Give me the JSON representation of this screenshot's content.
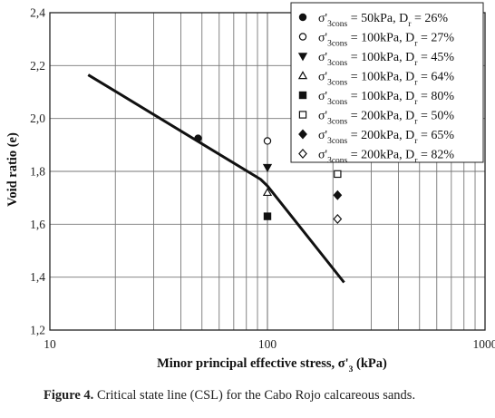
{
  "caption": {
    "label": "Figure 4.",
    "text": " Critical state line (CSL) for the Cabo Rojo calcareous sands."
  },
  "chart_data": {
    "type": "scatter",
    "title": "",
    "xlabel": "Minor principal effective stress, σ'3 (kPa)",
    "ylabel": "Void ratio (e)",
    "xscale": "log",
    "xlim": [
      10,
      1000
    ],
    "ylim": [
      1.2,
      2.4
    ],
    "xticks": [
      "10",
      "100",
      "1000"
    ],
    "yticks": [
      "1,2",
      "1,4",
      "1,6",
      "1,8",
      "2,0",
      "2,2",
      "2,4"
    ],
    "grid": true,
    "legend_position": "top-right",
    "csl_line": {
      "x": [
        15,
        93,
        100,
        225
      ],
      "y": [
        2.165,
        1.77,
        1.745,
        1.38
      ]
    },
    "series": [
      {
        "name": "σ'3cons = 50kPa, Dr = 26%",
        "marker": "circle-filled",
        "x": [
          48
        ],
        "y": [
          1.925
        ]
      },
      {
        "name": "σ'3cons = 100kPa, Dr = 27%",
        "marker": "circle-open",
        "x": [
          100
        ],
        "y": [
          1.915
        ]
      },
      {
        "name": "σ'3cons = 100kPa, Dr = 45%",
        "marker": "triangle-down-filled",
        "x": [
          100
        ],
        "y": [
          1.815
        ]
      },
      {
        "name": "σ'3cons = 100kPa, Dr = 64%",
        "marker": "triangle-up-open",
        "x": [
          100
        ],
        "y": [
          1.72
        ]
      },
      {
        "name": "σ'3cons = 100kPa, Dr = 80%",
        "marker": "square-filled",
        "x": [
          100
        ],
        "y": [
          1.63
        ]
      },
      {
        "name": "σ'3cons = 200kPa, Dr = 50%",
        "marker": "square-open",
        "x": [
          210
        ],
        "y": [
          1.79
        ]
      },
      {
        "name": "σ'3cons = 200kPa, Dr = 65%",
        "marker": "diamond-filled",
        "x": [
          210
        ],
        "y": [
          1.71
        ]
      },
      {
        "name": "σ'3cons = 200kPa, Dr = 82%",
        "marker": "diamond-open",
        "x": [
          210
        ],
        "y": [
          1.62
        ]
      }
    ],
    "legend_entries": [
      {
        "sigma": "σ'",
        "sub": "3cons",
        "mid": " = 50kPa, D",
        "dsub": "r",
        "end": " = 26%"
      },
      {
        "sigma": "σ'",
        "sub": "3cons",
        "mid": " = 100kPa, D",
        "dsub": "r",
        "end": " = 27%"
      },
      {
        "sigma": "σ'",
        "sub": "3cons",
        "mid": " = 100kPa, D",
        "dsub": "r",
        "end": " = 45%"
      },
      {
        "sigma": "σ'",
        "sub": "3cons",
        "mid": " = 100kPa, D",
        "dsub": "r",
        "end": " = 64%"
      },
      {
        "sigma": "σ'",
        "sub": "3cons",
        "mid": " = 100kPa, D",
        "dsub": "r",
        "end": " = 80%"
      },
      {
        "sigma": "σ'",
        "sub": "3cons",
        "mid": " = 200kPa, D",
        "dsub": "r",
        "end": " = 50%"
      },
      {
        "sigma": "σ'",
        "sub": "3cons",
        "mid": " = 200kPa, D",
        "dsub": "r",
        "end": " = 65%"
      },
      {
        "sigma": "σ'",
        "sub": "3cons",
        "mid": " = 200kPa, D",
        "dsub": "r",
        "end": " = 82%"
      }
    ],
    "xlabel_parts": {
      "main": "Minor principal effective stress, σ'",
      "sub": "3",
      "tail": " (kPa)"
    }
  }
}
